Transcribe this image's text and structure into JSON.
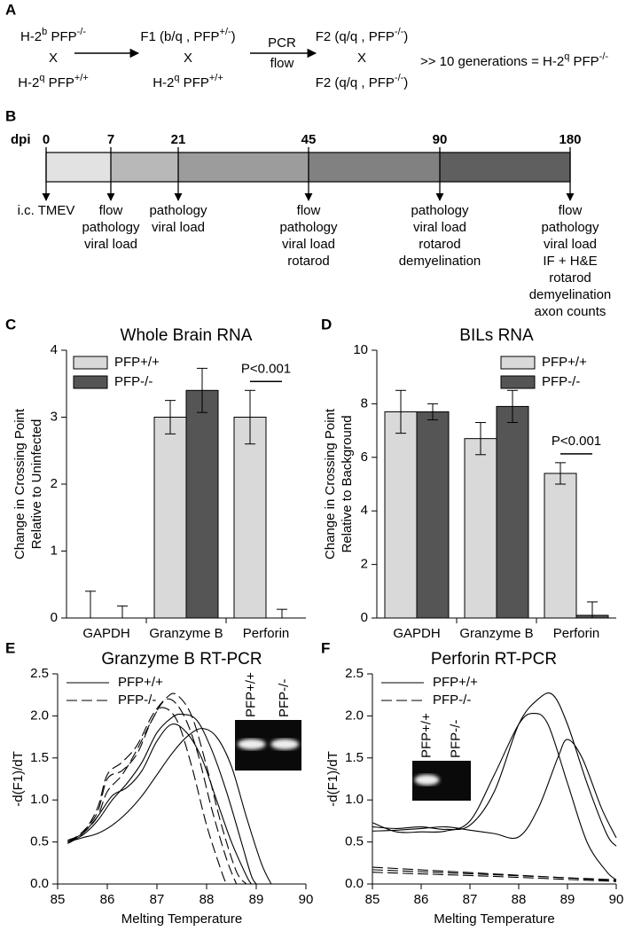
{
  "panel_a": {
    "letter": "A",
    "crosses": [
      {
        "top": [
          "H-2",
          "b",
          " PFP",
          "-/-"
        ],
        "cross": "X",
        "bottom": [
          "H-2",
          "q",
          " PFP",
          "+/+"
        ]
      },
      {
        "top": [
          "F1 (b/q , PFP",
          "+/-",
          ")"
        ],
        "cross": "X",
        "bottom": [
          "H-2",
          "q",
          " PFP",
          "+/+"
        ]
      },
      {
        "top": [
          "F2 (q/q , PFP",
          "-/-",
          ")"
        ],
        "cross": "X",
        "bottom": [
          "F2 (q/q , PFP",
          "-/-",
          ")"
        ]
      }
    ],
    "arrow_label": [
      "PCR",
      "flow"
    ],
    "result": [
      ">> 10 generations = H-2",
      "q",
      " PFP",
      "-/-"
    ]
  },
  "panel_b": {
    "letter": "B",
    "axis_label": "dpi",
    "ticks": [
      0,
      7,
      21,
      45,
      90,
      180
    ],
    "events": [
      [
        "i.c. TMEV"
      ],
      [
        "flow",
        "pathology",
        "viral load"
      ],
      [
        "pathology",
        "viral load"
      ],
      [
        "flow",
        "pathology",
        "viral load",
        "rotarod"
      ],
      [
        "pathology",
        "viral load",
        "rotarod",
        "demyelination"
      ],
      [
        "flow",
        "pathology",
        "viral load",
        "IF + H&E",
        "rotarod",
        "demyelination",
        "axon counts"
      ]
    ]
  },
  "chart_data": [
    {
      "type": "bar",
      "letter": "C",
      "title": "Whole Brain RNA",
      "ylabel": [
        "Change in Crossing Point",
        "Relative to Uninfected"
      ],
      "categories": [
        "GAPDH",
        "Granzyme B",
        "Perforin"
      ],
      "series": [
        {
          "name": "PFP+/+",
          "color": "#d9d9d9",
          "values": [
            0,
            3.0,
            3.0
          ],
          "errors": [
            0.4,
            0.25,
            0.4
          ]
        },
        {
          "name": "PFP-/-",
          "color": "#555555",
          "values": [
            0,
            3.4,
            0
          ],
          "errors": [
            0.18,
            0.33,
            0.13
          ]
        }
      ],
      "ylim": [
        0,
        4
      ],
      "yticks": [
        0,
        1,
        2,
        3,
        4
      ],
      "legend": "upper left",
      "annotation": "P<0.001"
    },
    {
      "type": "bar",
      "letter": "D",
      "title": "BILs RNA",
      "ylabel": [
        "Change in Crossing Point",
        "Relative to Background"
      ],
      "categories": [
        "GAPDH",
        "Granzyme B",
        "Perforin"
      ],
      "series": [
        {
          "name": "PFP+/+",
          "color": "#d9d9d9",
          "values": [
            7.7,
            6.7,
            5.4
          ],
          "errors": [
            0.8,
            0.6,
            0.4
          ]
        },
        {
          "name": "PFP-/-",
          "color": "#555555",
          "values": [
            7.7,
            7.9,
            0.1
          ],
          "errors": [
            0.3,
            0.6,
            0.5
          ]
        }
      ],
      "ylim": [
        0,
        10
      ],
      "yticks": [
        0,
        2,
        4,
        6,
        8,
        10
      ],
      "legend": "upper right",
      "annotation": "P<0.001"
    },
    {
      "type": "line",
      "letter": "E",
      "title": "Granzyme B RT-PCR",
      "xlabel": "Melting Temperature",
      "ylabel": "-d(F1)/dT",
      "xlim": [
        85,
        90
      ],
      "xticks": [
        85,
        86,
        87,
        88,
        89,
        90
      ],
      "ylim": [
        0,
        2.5
      ],
      "yticks": [
        {
          "value": 0,
          "label": "0.0"
        },
        0.5,
        {
          "value": 1,
          "label": "1.0"
        },
        1.5,
        {
          "value": 2,
          "label": "2.0"
        },
        2.5
      ],
      "legend": "upper left",
      "inset_labels": [
        "PFP+/+",
        "PFP-/-"
      ],
      "series": [
        {
          "name": "PFP+/+",
          "color": "#000000",
          "dash": false,
          "curves": [
            {
              "x": [
                85.2,
                85.5,
                85.8,
                86.1,
                86.4,
                86.7,
                87.0,
                87.3,
                87.5,
                87.8,
                88.1,
                88.4,
                88.7,
                88.9,
                89.0
              ],
              "values": [
                0.5,
                0.58,
                0.75,
                1.0,
                1.2,
                1.45,
                1.8,
                1.98,
                2.02,
                1.95,
                1.6,
                1.1,
                0.5,
                0.1,
                0
              ]
            },
            {
              "x": [
                85.2,
                85.5,
                85.8,
                86.1,
                86.4,
                86.7,
                87.0,
                87.3,
                87.6,
                87.9,
                88.2,
                88.5,
                88.8,
                88.9
              ],
              "values": [
                0.52,
                0.6,
                0.8,
                1.05,
                1.15,
                1.35,
                1.7,
                1.9,
                1.8,
                1.5,
                1.0,
                0.5,
                0.1,
                0
              ]
            },
            {
              "x": [
                85.2,
                85.5,
                85.8,
                86.1,
                86.4,
                86.7,
                87.0,
                87.3,
                87.6,
                87.9,
                88.2,
                88.5,
                88.8,
                89.1,
                89.3
              ],
              "values": [
                0.5,
                0.55,
                0.6,
                0.7,
                0.85,
                1.05,
                1.3,
                1.55,
                1.75,
                1.85,
                1.75,
                1.4,
                0.8,
                0.25,
                0
              ]
            }
          ]
        },
        {
          "name": "PFP-/-",
          "color": "#000000",
          "dash": true,
          "curves": [
            {
              "x": [
                85.2,
                85.5,
                85.8,
                86.0,
                86.3,
                86.6,
                86.9,
                87.2,
                87.4,
                87.7,
                88.0,
                88.3,
                88.6,
                88.8
              ],
              "values": [
                0.48,
                0.6,
                0.9,
                1.3,
                1.45,
                1.65,
                2.0,
                2.22,
                2.25,
                2.0,
                1.4,
                0.7,
                0.15,
                0
              ]
            },
            {
              "x": [
                85.2,
                85.5,
                85.8,
                86.0,
                86.3,
                86.6,
                86.9,
                87.2,
                87.5,
                87.8,
                88.1,
                88.4,
                88.6
              ],
              "values": [
                0.5,
                0.62,
                0.85,
                1.25,
                1.35,
                1.55,
                1.95,
                2.2,
                2.05,
                1.6,
                0.9,
                0.3,
                0
              ]
            },
            {
              "x": [
                85.2,
                85.5,
                85.8,
                86.0,
                86.3,
                86.6,
                86.9,
                87.1,
                87.4,
                87.7,
                88.0,
                88.3,
                88.4
              ],
              "values": [
                0.5,
                0.6,
                0.8,
                1.1,
                1.3,
                1.6,
                1.95,
                2.1,
                1.95,
                1.4,
                0.7,
                0.15,
                0
              ]
            }
          ]
        }
      ]
    },
    {
      "type": "line",
      "letter": "F",
      "title": "Perforin RT-PCR",
      "xlabel": "Melting Temperature",
      "ylabel": "-d(F1)/dT",
      "xlim": [
        85,
        90
      ],
      "xticks": [
        85,
        86,
        87,
        88,
        89,
        90
      ],
      "ylim": [
        0,
        2.5
      ],
      "yticks": [
        {
          "value": 0,
          "label": "0.0"
        },
        0.5,
        {
          "value": 1,
          "label": "1.0"
        },
        1.5,
        {
          "value": 2,
          "label": "2.0"
        },
        2.5
      ],
      "legend": "upper left",
      "inset_labels": [
        "PFP+/+",
        "PFP-/-"
      ],
      "series": [
        {
          "name": "PFP+/+",
          "color": "#000000",
          "dash": false,
          "curves": [
            {
              "x": [
                85,
                85.5,
                86,
                86.5,
                87,
                87.5,
                88,
                88.4,
                88.7,
                89,
                89.4,
                89.8,
                90
              ],
              "values": [
                0.68,
                0.66,
                0.68,
                0.65,
                0.7,
                1.1,
                1.9,
                2.2,
                2.25,
                1.9,
                1.2,
                0.6,
                0.45
              ]
            },
            {
              "x": [
                85,
                85.5,
                86,
                86.5,
                87,
                87.5,
                88,
                88.3,
                88.6,
                89,
                89.4,
                89.8,
                90
              ],
              "values": [
                0.73,
                0.62,
                0.62,
                0.63,
                0.75,
                1.3,
                1.9,
                2.03,
                1.9,
                1.2,
                0.5,
                0.15,
                0.05
              ]
            },
            {
              "x": [
                85,
                85.5,
                86,
                86.5,
                87,
                87.5,
                88,
                88.4,
                88.8,
                89,
                89.3,
                89.7,
                90
              ],
              "values": [
                0.63,
                0.64,
                0.66,
                0.68,
                0.64,
                0.6,
                0.56,
                0.9,
                1.5,
                1.72,
                1.5,
                0.9,
                0.55
              ]
            }
          ]
        },
        {
          "name": "PFP-/-",
          "color": "#000000",
          "dash": true,
          "curves": [
            {
              "x": [
                85,
                87.5,
                90
              ],
              "values": [
                0.2,
                0.12,
                0.04
              ]
            },
            {
              "x": [
                85,
                87.5,
                90
              ],
              "values": [
                0.17,
                0.11,
                0.05
              ]
            },
            {
              "x": [
                85,
                87.5,
                90
              ],
              "values": [
                0.14,
                0.09,
                0.03
              ]
            }
          ]
        }
      ]
    }
  ]
}
